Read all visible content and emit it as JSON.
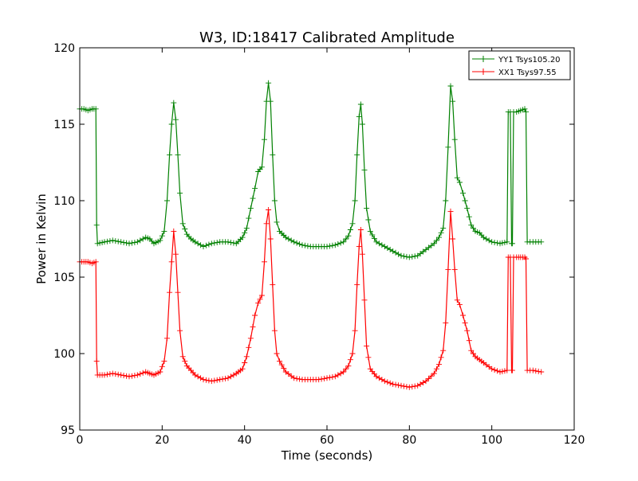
{
  "chart_data": {
    "type": "line",
    "title": "W3, ID:18417 Calibrated Amplitude",
    "xlabel": "Time (seconds)",
    "ylabel": "Power in Kelvin",
    "xlim": [
      0,
      120
    ],
    "ylim": [
      95,
      120
    ],
    "xticks": [
      "0",
      "20",
      "40",
      "60",
      "80",
      "100",
      "120"
    ],
    "yticks": [
      "95",
      "100",
      "105",
      "110",
      "115",
      "120"
    ],
    "grid": false,
    "legend_position": "top-right",
    "marker": "+",
    "series": [
      {
        "name": "YY1 Tsys105.20",
        "color": "#008000",
        "points": [
          [
            0,
            116.0
          ],
          [
            1,
            116.0
          ],
          [
            2,
            115.9
          ],
          [
            3,
            116.0
          ],
          [
            3.9,
            116.0
          ],
          [
            4.1,
            108.4
          ],
          [
            4.3,
            107.2
          ],
          [
            6,
            107.3
          ],
          [
            8,
            107.4
          ],
          [
            10,
            107.3
          ],
          [
            12,
            107.2
          ],
          [
            14,
            107.3
          ],
          [
            16,
            107.6
          ],
          [
            17,
            107.5
          ],
          [
            18,
            107.2
          ],
          [
            19.5,
            107.4
          ],
          [
            20.5,
            108.0
          ],
          [
            21.2,
            110.0
          ],
          [
            21.8,
            113.0
          ],
          [
            22.3,
            115.0
          ],
          [
            22.8,
            116.4
          ],
          [
            23.3,
            115.3
          ],
          [
            23.8,
            113.0
          ],
          [
            24.3,
            110.5
          ],
          [
            25,
            108.5
          ],
          [
            26,
            107.8
          ],
          [
            27,
            107.5
          ],
          [
            28,
            107.3
          ],
          [
            30,
            107.0
          ],
          [
            32,
            107.2
          ],
          [
            34,
            107.3
          ],
          [
            36,
            107.3
          ],
          [
            38,
            107.2
          ],
          [
            39.5,
            107.6
          ],
          [
            40.5,
            108.2
          ],
          [
            41.5,
            109.5
          ],
          [
            42.5,
            110.8
          ],
          [
            43.3,
            111.9
          ],
          [
            44.2,
            112.2
          ],
          [
            44.8,
            114.0
          ],
          [
            45.3,
            116.5
          ],
          [
            45.8,
            117.7
          ],
          [
            46.3,
            116.5
          ],
          [
            46.8,
            113.0
          ],
          [
            47.3,
            110.0
          ],
          [
            47.8,
            108.6
          ],
          [
            48.5,
            108.0
          ],
          [
            50,
            107.6
          ],
          [
            52,
            107.3
          ],
          [
            54,
            107.1
          ],
          [
            56,
            107.0
          ],
          [
            58,
            107.0
          ],
          [
            60,
            107.0
          ],
          [
            62,
            107.1
          ],
          [
            64,
            107.3
          ],
          [
            65.2,
            107.7
          ],
          [
            66.2,
            108.5
          ],
          [
            66.8,
            110.0
          ],
          [
            67.3,
            113.0
          ],
          [
            67.8,
            115.5
          ],
          [
            68.2,
            116.3
          ],
          [
            68.6,
            115.0
          ],
          [
            69.1,
            112.0
          ],
          [
            69.6,
            109.5
          ],
          [
            70.5,
            108.0
          ],
          [
            72,
            107.3
          ],
          [
            74,
            107.0
          ],
          [
            76,
            106.7
          ],
          [
            78,
            106.4
          ],
          [
            80,
            106.3
          ],
          [
            82,
            106.4
          ],
          [
            84,
            106.8
          ],
          [
            86,
            107.2
          ],
          [
            87.2,
            107.6
          ],
          [
            88.2,
            108.2
          ],
          [
            88.8,
            110.0
          ],
          [
            89.4,
            113.5
          ],
          [
            90,
            117.5
          ],
          [
            90.5,
            116.5
          ],
          [
            91,
            114.0
          ],
          [
            91.6,
            111.5
          ],
          [
            92.2,
            111.2
          ],
          [
            93,
            110.5
          ],
          [
            94,
            109.5
          ],
          [
            95,
            108.4
          ],
          [
            96,
            108.0
          ],
          [
            97,
            107.9
          ],
          [
            98,
            107.6
          ],
          [
            100,
            107.3
          ],
          [
            102,
            107.2
          ],
          [
            103.7,
            107.3
          ],
          [
            104,
            115.8
          ],
          [
            104.5,
            115.8
          ],
          [
            104.8,
            107.2
          ],
          [
            105,
            107.2
          ],
          [
            105.3,
            115.8
          ],
          [
            106,
            115.8
          ],
          [
            107,
            115.9
          ],
          [
            108,
            116.0
          ],
          [
            108.3,
            115.8
          ],
          [
            108.6,
            107.3
          ],
          [
            110,
            107.3
          ],
          [
            112,
            107.3
          ]
        ]
      },
      {
        "name": "XX1 Tsys97.55",
        "color": "#ff0000",
        "points": [
          [
            0,
            106.0
          ],
          [
            1,
            106.0
          ],
          [
            2,
            106.0
          ],
          [
            3,
            105.9
          ],
          [
            3.9,
            106.0
          ],
          [
            4.1,
            99.5
          ],
          [
            4.3,
            98.6
          ],
          [
            6,
            98.6
          ],
          [
            8,
            98.7
          ],
          [
            10,
            98.6
          ],
          [
            12,
            98.5
          ],
          [
            14,
            98.6
          ],
          [
            16,
            98.8
          ],
          [
            17,
            98.7
          ],
          [
            18,
            98.6
          ],
          [
            19.5,
            98.8
          ],
          [
            20.5,
            99.5
          ],
          [
            21.2,
            101.0
          ],
          [
            21.8,
            104.0
          ],
          [
            22.3,
            106.0
          ],
          [
            22.8,
            108.0
          ],
          [
            23.3,
            106.5
          ],
          [
            23.8,
            104.0
          ],
          [
            24.3,
            101.5
          ],
          [
            25,
            99.8
          ],
          [
            26,
            99.2
          ],
          [
            27,
            98.9
          ],
          [
            28,
            98.6
          ],
          [
            30,
            98.3
          ],
          [
            32,
            98.2
          ],
          [
            34,
            98.3
          ],
          [
            36,
            98.4
          ],
          [
            38,
            98.7
          ],
          [
            39.5,
            99.0
          ],
          [
            40.5,
            99.8
          ],
          [
            41.5,
            101.0
          ],
          [
            42.5,
            102.5
          ],
          [
            43.3,
            103.3
          ],
          [
            44.2,
            103.8
          ],
          [
            44.8,
            106.0
          ],
          [
            45.3,
            108.5
          ],
          [
            45.8,
            109.4
          ],
          [
            46.3,
            107.5
          ],
          [
            46.8,
            104.5
          ],
          [
            47.3,
            101.5
          ],
          [
            47.8,
            100.0
          ],
          [
            48.5,
            99.5
          ],
          [
            50,
            98.8
          ],
          [
            52,
            98.4
          ],
          [
            54,
            98.3
          ],
          [
            56,
            98.3
          ],
          [
            58,
            98.3
          ],
          [
            60,
            98.4
          ],
          [
            62,
            98.5
          ],
          [
            64,
            98.8
          ],
          [
            65.2,
            99.2
          ],
          [
            66.2,
            100.0
          ],
          [
            66.8,
            101.5
          ],
          [
            67.3,
            104.5
          ],
          [
            67.8,
            107.0
          ],
          [
            68.2,
            108.1
          ],
          [
            68.6,
            106.5
          ],
          [
            69.1,
            103.5
          ],
          [
            69.6,
            100.5
          ],
          [
            70.5,
            99.0
          ],
          [
            72,
            98.5
          ],
          [
            74,
            98.2
          ],
          [
            76,
            98.0
          ],
          [
            78,
            97.9
          ],
          [
            80,
            97.8
          ],
          [
            82,
            97.9
          ],
          [
            84,
            98.2
          ],
          [
            86,
            98.7
          ],
          [
            87.2,
            99.3
          ],
          [
            88.2,
            100.2
          ],
          [
            88.8,
            102.0
          ],
          [
            89.4,
            105.5
          ],
          [
            90,
            109.3
          ],
          [
            90.5,
            107.5
          ],
          [
            91,
            105.5
          ],
          [
            91.6,
            103.5
          ],
          [
            92.2,
            103.2
          ],
          [
            93,
            102.5
          ],
          [
            94,
            101.5
          ],
          [
            95,
            100.2
          ],
          [
            96,
            99.8
          ],
          [
            97,
            99.6
          ],
          [
            98,
            99.4
          ],
          [
            100,
            99.0
          ],
          [
            102,
            98.8
          ],
          [
            103.7,
            98.9
          ],
          [
            104,
            106.3
          ],
          [
            104.5,
            106.3
          ],
          [
            104.8,
            98.9
          ],
          [
            105,
            98.9
          ],
          [
            105.3,
            106.3
          ],
          [
            106,
            106.3
          ],
          [
            107,
            106.3
          ],
          [
            108,
            106.3
          ],
          [
            108.3,
            106.2
          ],
          [
            108.6,
            98.9
          ],
          [
            110,
            98.9
          ],
          [
            112,
            98.8
          ]
        ]
      }
    ]
  }
}
